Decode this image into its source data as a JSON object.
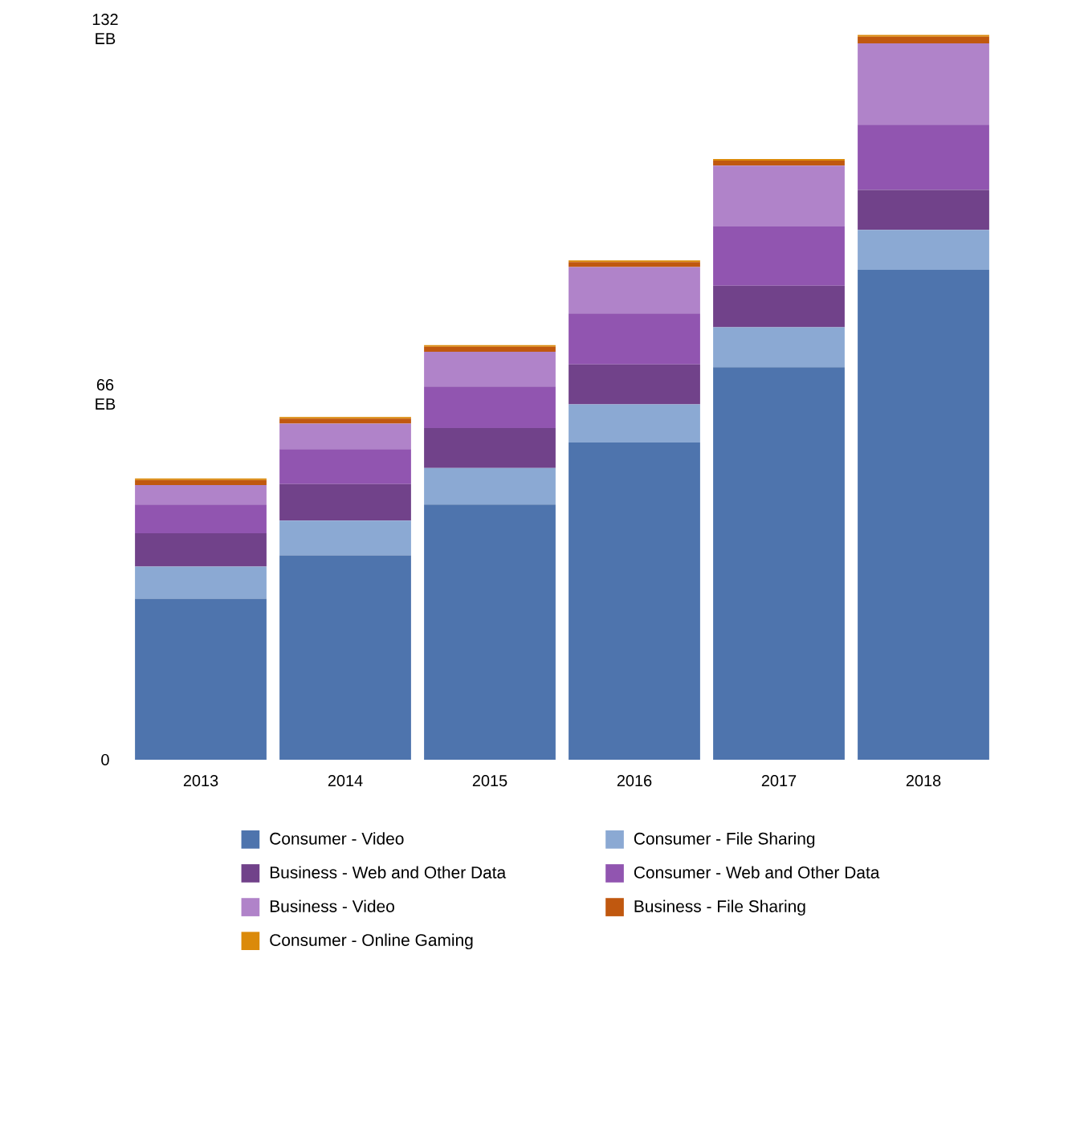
{
  "chart_data": {
    "type": "bar",
    "stacked": true,
    "categories": [
      "2013",
      "2014",
      "2015",
      "2016",
      "2017",
      "2018"
    ],
    "ylim": [
      0,
      132
    ],
    "yticks": [
      {
        "value": 0,
        "label": "0"
      },
      {
        "value": 66,
        "label": "66 EB"
      },
      {
        "value": 132,
        "label": "132 EB"
      }
    ],
    "legend": "bottom",
    "grid": false,
    "series": [
      {
        "name": "Consumer - Video",
        "color": "#4e74ad",
        "values": [
          29.1,
          36.9,
          46.1,
          57.3,
          70.9,
          88.5
        ]
      },
      {
        "name": "Consumer - File Sharing",
        "color": "#8ba9d3",
        "values": [
          5.8,
          6.3,
          6.6,
          6.9,
          7.2,
          7.2
        ]
      },
      {
        "name": "Business - Web and Other Data",
        "color": "#71428a",
        "values": [
          6.0,
          6.6,
          7.2,
          7.2,
          7.5,
          7.2
        ]
      },
      {
        "name": "Consumer - Web and Other Data",
        "color": "#9155b0",
        "values": [
          5.2,
          6.3,
          7.5,
          9.2,
          10.7,
          11.8
        ]
      },
      {
        "name": "Business - Video",
        "color": "#b083c9",
        "values": [
          3.5,
          4.6,
          6.3,
          8.4,
          11.0,
          14.7
        ]
      },
      {
        "name": "Business - File Sharing",
        "color": "#c0580f",
        "values": [
          0.9,
          0.9,
          0.9,
          0.9,
          0.9,
          1.2
        ]
      },
      {
        "name": "Consumer - Online Gaming",
        "color": "#db8a0a",
        "values": [
          0.3,
          0.3,
          0.3,
          0.3,
          0.3,
          0.3
        ]
      }
    ]
  }
}
